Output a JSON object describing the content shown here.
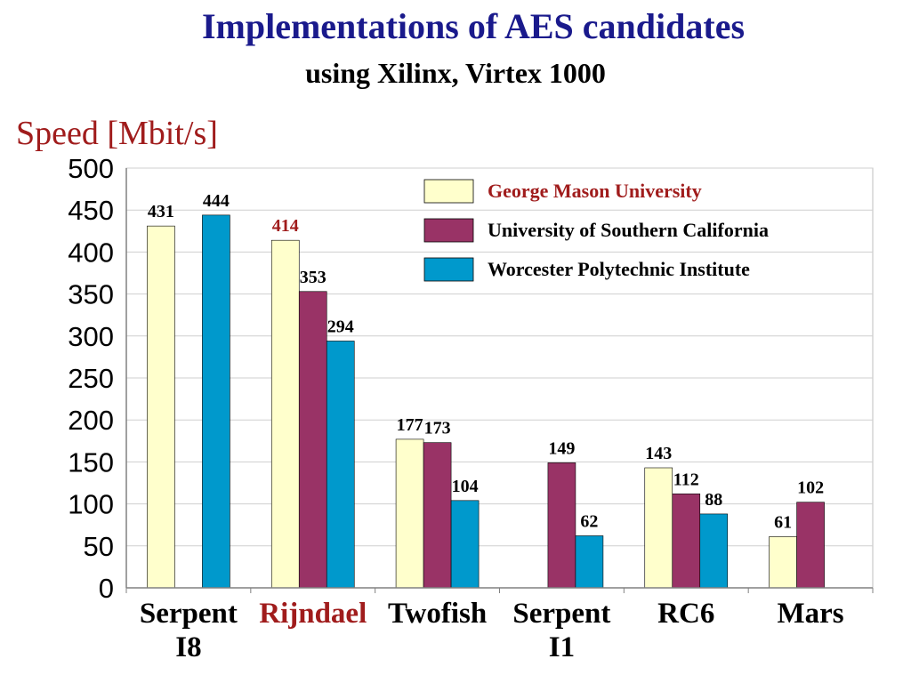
{
  "header": {
    "title": "Implementations of AES candidates",
    "subtitle": "using Xilinx, Virtex 1000"
  },
  "chart_data": {
    "type": "bar",
    "ylabel": "Speed [Mbit/s]",
    "ylim": [
      0,
      500
    ],
    "yticks": [
      "0",
      "50",
      "100",
      "150",
      "200",
      "250",
      "300",
      "350",
      "400",
      "450",
      "500"
    ],
    "grid": true,
    "legend_position": "top-right",
    "categories": [
      {
        "line1": "Serpent",
        "line2": "I8",
        "highlight": false
      },
      {
        "line1": "Rijndael",
        "line2": "",
        "highlight": true
      },
      {
        "line1": "Twofish",
        "line2": "",
        "highlight": false
      },
      {
        "line1": "Serpent",
        "line2": "I1",
        "highlight": false
      },
      {
        "line1": "RC6",
        "line2": "",
        "highlight": false
      },
      {
        "line1": "Mars",
        "line2": "",
        "highlight": false
      }
    ],
    "series": [
      {
        "name": "George Mason University",
        "color": "#ffffcc",
        "values": [
          431,
          414,
          177,
          null,
          143,
          61
        ]
      },
      {
        "name": "University of Southern California",
        "color": "#993366",
        "values": [
          null,
          353,
          173,
          149,
          112,
          102
        ]
      },
      {
        "name": "Worcester Polytechnic Institute",
        "color": "#0099cc",
        "values": [
          444,
          294,
          104,
          62,
          88,
          null
        ]
      }
    ],
    "value_label_colors": {
      "highlight": "#a01c1c",
      "normal": "#000000"
    },
    "legend_label_colors": [
      "#a01c1c",
      "#000000",
      "#000000"
    ]
  }
}
